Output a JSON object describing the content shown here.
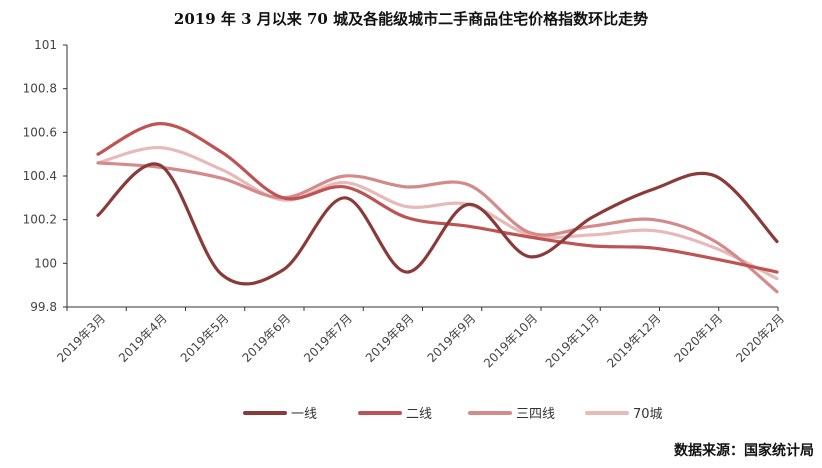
{
  "chart_data": {
    "type": "line",
    "title": "2019 年 3 月以来 70 城及各能级城市二手商品住宅价格指数环比走势",
    "categories": [
      "2019年3月",
      "2019年4月",
      "2019年5月",
      "2019年6月",
      "2019年7月",
      "2019年8月",
      "2019年9月",
      "2019年10月",
      "2019年11月",
      "2019年12月",
      "2020年1月",
      "2020年2月"
    ],
    "ylim": [
      99.8,
      101
    ],
    "yticks": [
      "99.8",
      "100",
      "100.2",
      "100.4",
      "100.6",
      "100.8",
      "101"
    ],
    "smooth": true,
    "legend_position": "bottom",
    "grid": false,
    "series": [
      {
        "name": "一线",
        "color": "#8b3a3a",
        "values": [
          100.22,
          100.45,
          99.95,
          99.97,
          100.3,
          99.96,
          100.27,
          100.03,
          100.21,
          100.34,
          100.4,
          100.1
        ]
      },
      {
        "name": "二线",
        "color": "#bf5252",
        "values": [
          100.5,
          100.64,
          100.51,
          100.3,
          100.35,
          100.21,
          100.17,
          100.12,
          100.08,
          100.07,
          100.02,
          99.96
        ]
      },
      {
        "name": "三四线",
        "color": "#d58a8a",
        "values": [
          100.46,
          100.44,
          100.39,
          100.3,
          100.4,
          100.35,
          100.36,
          100.14,
          100.17,
          100.2,
          100.1,
          99.87
        ]
      },
      {
        "name": "70城",
        "color": "#e8b9b9",
        "values": [
          100.46,
          100.53,
          100.43,
          100.29,
          100.37,
          100.26,
          100.27,
          100.13,
          100.13,
          100.15,
          100.07,
          99.93
        ]
      }
    ]
  },
  "source": "数据来源：国家统计局"
}
